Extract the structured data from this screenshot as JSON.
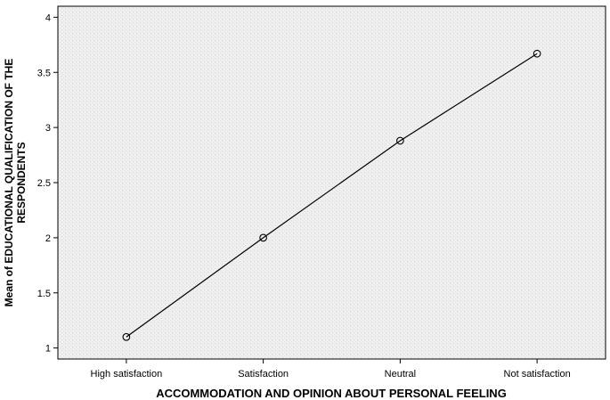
{
  "chart_data": {
    "type": "line",
    "xlabel": "ACCOMMODATION AND OPINION ABOUT PERSONAL FEELING",
    "ylabel_lines": [
      "Mean of EDUCATIONAL QUALIFICATION OF THE",
      "RESPONDENTS"
    ],
    "categories": [
      "High satisfaction",
      "Satisfaction",
      "Neutral",
      "Not satisfaction"
    ],
    "series": [
      {
        "values": [
          1.1,
          2.0,
          2.88,
          3.67
        ]
      }
    ],
    "ylim": [
      0.9,
      4.1
    ],
    "yticks": [
      1,
      1.5,
      2,
      2.5,
      3,
      3.5,
      4
    ],
    "ytick_labels": [
      "1",
      "1.5",
      "2",
      "2.5",
      "3",
      "3.5",
      "4"
    ],
    "grid": false,
    "legend": "none",
    "colors": {
      "plot_background": "#efefef",
      "line": "#000000",
      "marker_stroke": "#000000"
    }
  }
}
